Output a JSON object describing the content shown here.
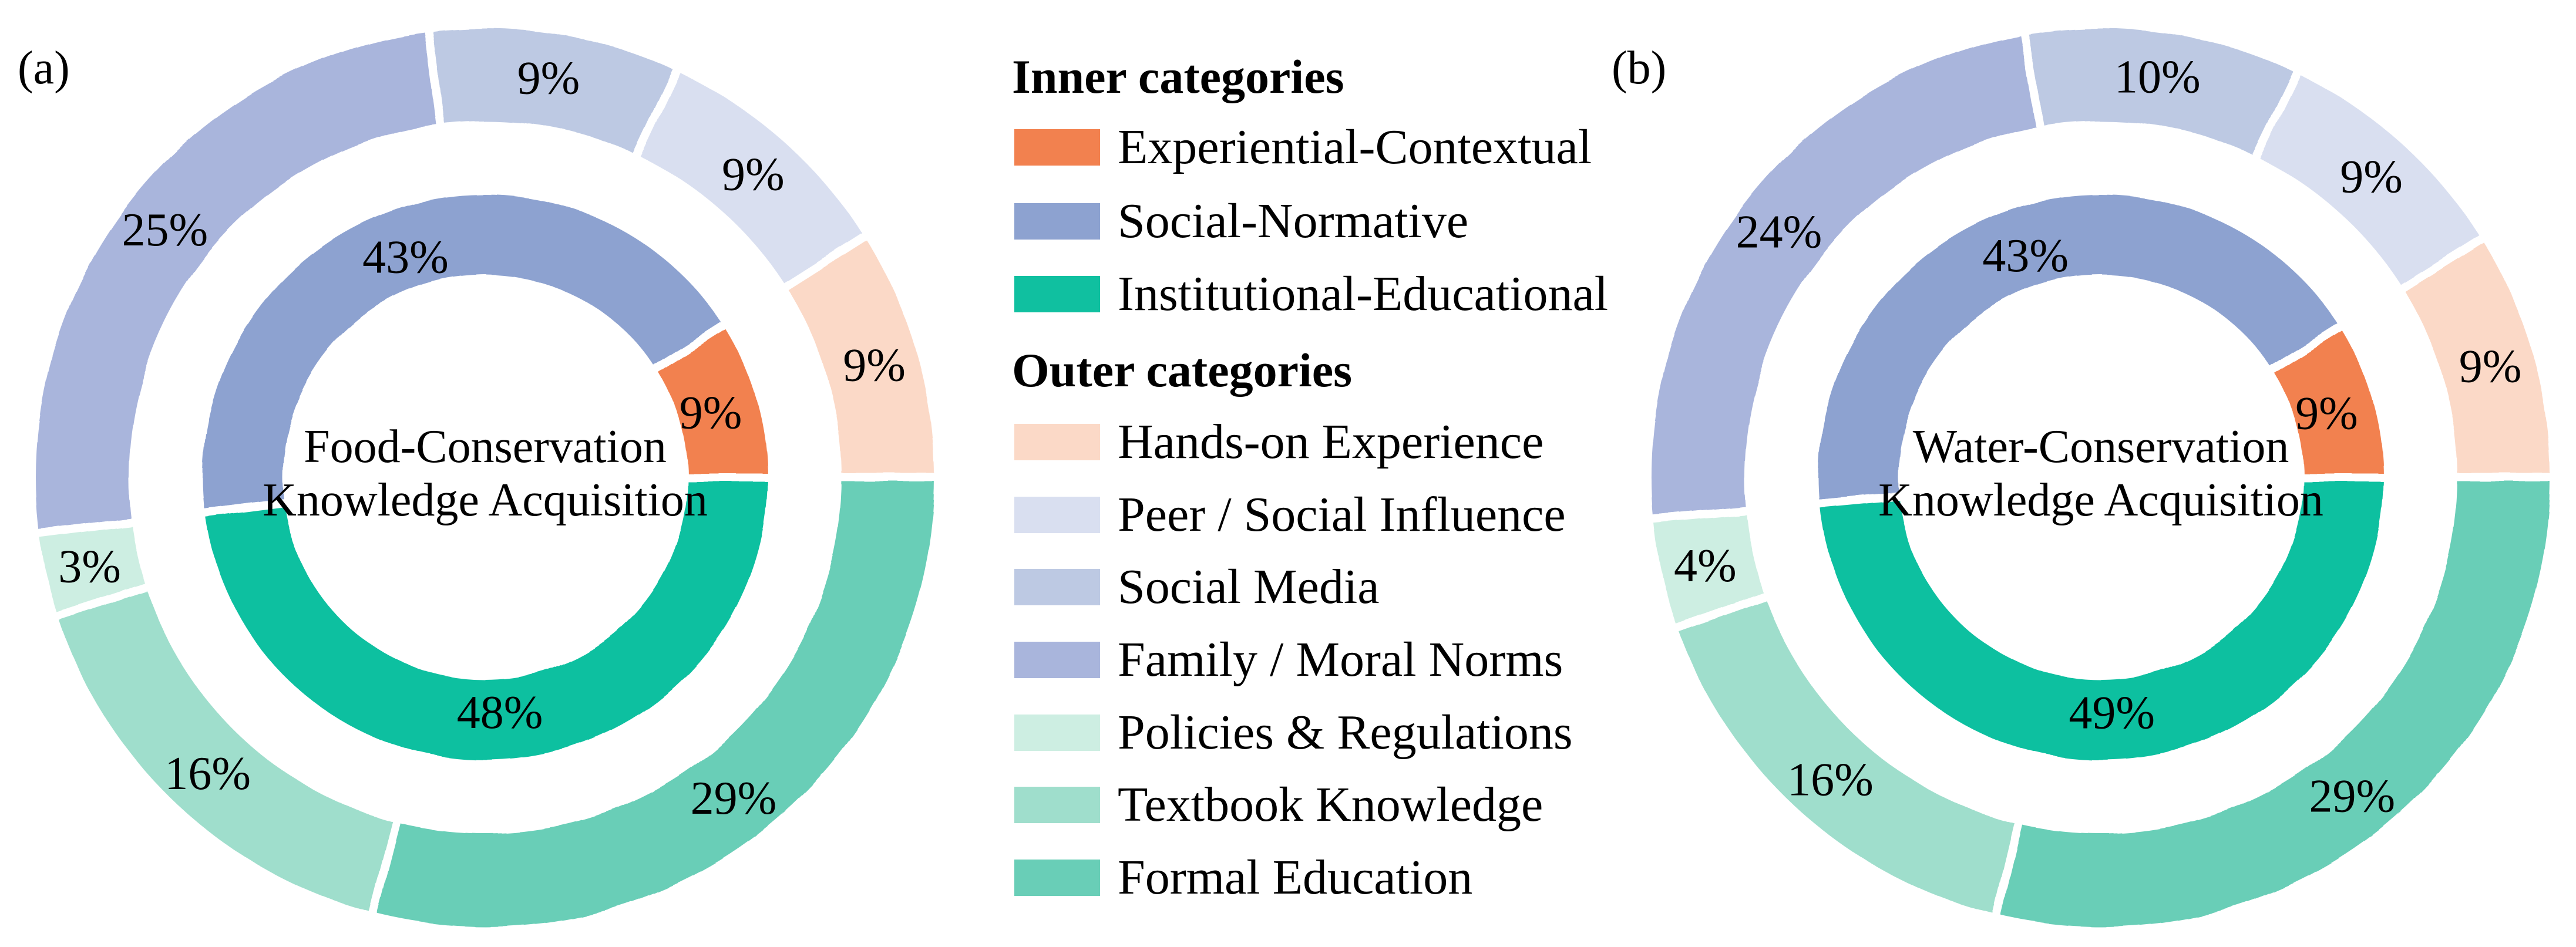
{
  "panel_a": {
    "tag": "(a)"
  },
  "panel_b": {
    "tag": "(b)"
  },
  "legend": {
    "inner_title": "Inner categories",
    "outer_title": "Outer categories",
    "inner_items": [
      {
        "label": "Experiential-Contextual",
        "color": "#F2814F"
      },
      {
        "label": "Social-Normative",
        "color": "#8DA2D0"
      },
      {
        "label": "Institutional-Educational",
        "color": "#10C0A0"
      }
    ],
    "outer_items": [
      {
        "label": "Hands-on Experience",
        "color": "#FBD9C7"
      },
      {
        "label": "Peer / Social Influence",
        "color": "#D9DFF0"
      },
      {
        "label": "Social Media",
        "color": "#BDC9E3"
      },
      {
        "label": "Family / Moral Norms",
        "color": "#A9B5DC"
      },
      {
        "label": "Policies & Regulations",
        "color": "#CDEEE2"
      },
      {
        "label": "Textbook Knowledge",
        "color": "#9FDECC"
      },
      {
        "label": "Formal Education",
        "color": "#69CEB7"
      }
    ]
  },
  "chart_data": [
    {
      "type": "pie",
      "subtype": "nested_donut",
      "panel_tag": "(a)",
      "title": "Food-Conservation Knowledge Acquisition",
      "center_lines": [
        "Food-Conservation",
        "Knowledge Acquisition"
      ],
      "start_angle_deg": 0,
      "direction": "counterclockwise",
      "inner_ring": [
        {
          "category": "Experiential-Contextual",
          "value_pct": 9,
          "label": "9%",
          "color": "#F2814F"
        },
        {
          "category": "Social-Normative",
          "value_pct": 43,
          "label": "43%",
          "color": "#8DA2D0"
        },
        {
          "category": "Institutional-Educational",
          "value_pct": 48,
          "label": "48%",
          "color": "#10C0A0"
        }
      ],
      "outer_ring": [
        {
          "category": "Hands-on Experience",
          "value_pct": 9,
          "label": "9%",
          "color": "#FBD9C7"
        },
        {
          "category": "Peer / Social Influence",
          "value_pct": 9,
          "label": "9%",
          "color": "#D9DFF0"
        },
        {
          "category": "Social Media",
          "value_pct": 9,
          "label": "9%",
          "color": "#BDC9E3"
        },
        {
          "category": "Family / Moral Norms",
          "value_pct": 25,
          "label": "25%",
          "color": "#A9B5DC"
        },
        {
          "category": "Policies & Regulations",
          "value_pct": 3,
          "label": "3%",
          "color": "#CDEEE2"
        },
        {
          "category": "Textbook Knowledge",
          "value_pct": 16,
          "label": "16%",
          "color": "#9FDECC"
        },
        {
          "category": "Formal Education",
          "value_pct": 29,
          "label": "29%",
          "color": "#69CEB7"
        }
      ]
    },
    {
      "type": "pie",
      "subtype": "nested_donut",
      "panel_tag": "(b)",
      "title": "Water-Conservation Knowledge Acquisition",
      "center_lines": [
        "Water-Conservation",
        "Knowledge Acquisition"
      ],
      "start_angle_deg": 0,
      "direction": "counterclockwise",
      "inner_ring": [
        {
          "category": "Experiential-Contextual",
          "value_pct": 9,
          "label": "9%",
          "color": "#F2814F"
        },
        {
          "category": "Social-Normative",
          "value_pct": 43,
          "label": "43%",
          "color": "#8DA2D0"
        },
        {
          "category": "Institutional-Educational",
          "value_pct": 49,
          "label": "49%",
          "color": "#10C0A0"
        }
      ],
      "outer_ring": [
        {
          "category": "Hands-on Experience",
          "value_pct": 9,
          "label": "9%",
          "color": "#FBD9C7"
        },
        {
          "category": "Peer / Social Influence",
          "value_pct": 9,
          "label": "9%",
          "color": "#D9DFF0"
        },
        {
          "category": "Social Media",
          "value_pct": 10,
          "label": "10%",
          "color": "#BDC9E3"
        },
        {
          "category": "Family / Moral Norms",
          "value_pct": 24,
          "label": "24%",
          "color": "#A9B5DC"
        },
        {
          "category": "Policies & Regulations",
          "value_pct": 4,
          "label": "4%",
          "color": "#CDEEE2"
        },
        {
          "category": "Textbook Knowledge",
          "value_pct": 16,
          "label": "16%",
          "color": "#9FDECC"
        },
        {
          "category": "Formal Education",
          "value_pct": 29,
          "label": "29%",
          "color": "#69CEB7"
        }
      ]
    }
  ]
}
